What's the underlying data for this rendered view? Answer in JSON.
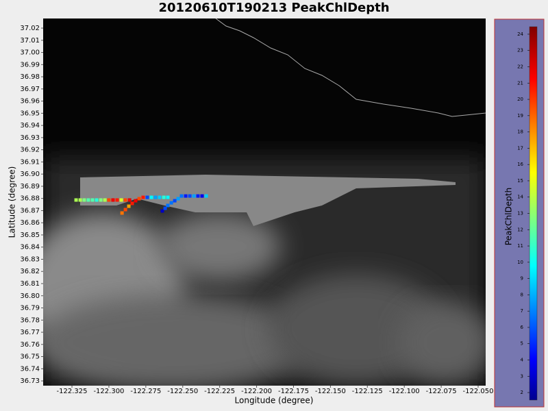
{
  "chart_data": {
    "type": "scatter",
    "title": "20120610T190213 PeakChlDepth",
    "xlabel": "Longitude (degree)",
    "ylabel": "Latitude (degree)",
    "xlim": [
      -122.3445,
      -122.0449
    ],
    "ylim": [
      36.7261,
      37.0279
    ],
    "xticks": [
      -122.325,
      {
        "value": -122.3,
        "label": "-122.300"
      },
      -122.275,
      {
        "value": -122.25,
        "label": "-122.250"
      },
      -122.225,
      {
        "value": -122.2,
        "label": "-122.200"
      },
      -122.175,
      {
        "value": -122.15,
        "label": "-122.150"
      },
      -122.125,
      {
        "value": -122.1,
        "label": "-122.100"
      },
      -122.075,
      {
        "value": -122.05,
        "label": "-122.050"
      }
    ],
    "yticks": [
      37.02,
      37.01,
      {
        "value": 37,
        "label": "37.00"
      },
      36.99,
      36.98,
      36.97,
      36.96,
      36.95,
      36.94,
      36.93,
      36.92,
      36.91,
      {
        "value": 36.9,
        "label": "36.90"
      },
      36.89,
      36.88,
      36.87,
      36.86,
      36.85,
      36.84,
      36.83,
      36.82,
      36.81,
      {
        "value": 36.8,
        "label": "36.80"
      },
      36.79,
      36.78,
      36.77,
      36.76,
      36.75,
      36.74,
      36.73
    ],
    "x": [
      -122.3222,
      -122.3194,
      -122.3167,
      -122.3139,
      -122.3111,
      -122.3083,
      -122.3055,
      -122.3027,
      -122.3,
      -122.2972,
      -122.2944,
      -122.2916,
      -122.2888,
      -122.286,
      -122.2911,
      -122.2888,
      -122.2865,
      -122.2842,
      -122.2819,
      -122.2795,
      -122.2768,
      -122.274,
      -122.2712,
      -122.2684,
      -122.2656,
      -122.2628,
      -122.2601,
      -122.2638,
      -122.2619,
      -122.2601,
      -122.2577,
      -122.2554,
      -122.2531,
      -122.2508,
      -122.248,
      -122.2452,
      -122.2424,
      -122.2397,
      -122.2369,
      -122.2341
    ],
    "y": [
      36.8787,
      36.8787,
      36.8787,
      36.8787,
      36.8787,
      36.8787,
      36.8787,
      36.8787,
      36.8787,
      36.8787,
      36.8787,
      36.8787,
      36.8787,
      36.8787,
      36.868,
      36.8708,
      36.8736,
      36.8759,
      36.8781,
      36.8798,
      36.8809,
      36.8809,
      36.8809,
      36.8809,
      36.8809,
      36.8809,
      36.8809,
      36.8697,
      36.8719,
      36.8742,
      36.8764,
      36.8781,
      36.8798,
      36.882,
      36.882,
      36.882,
      36.882,
      36.882,
      36.882,
      36.882
    ],
    "values": [
      14,
      14,
      13,
      12,
      12,
      11,
      13,
      14,
      20,
      22,
      21,
      15,
      20,
      22,
      19,
      20,
      18,
      21,
      22,
      20,
      21,
      6,
      10,
      8,
      9,
      11,
      10,
      3,
      6,
      7,
      7,
      6,
      8,
      7,
      5,
      6,
      8,
      5,
      4,
      9
    ],
    "colorbar": {
      "label": "PeakChlDepth",
      "lim": [
        1.54,
        24.46
      ],
      "ticks": [
        2,
        3,
        4,
        5,
        6,
        7,
        8,
        9,
        10,
        11,
        12,
        13,
        14,
        15,
        16,
        17,
        18,
        19,
        20,
        21,
        22,
        23,
        24
      ]
    }
  }
}
